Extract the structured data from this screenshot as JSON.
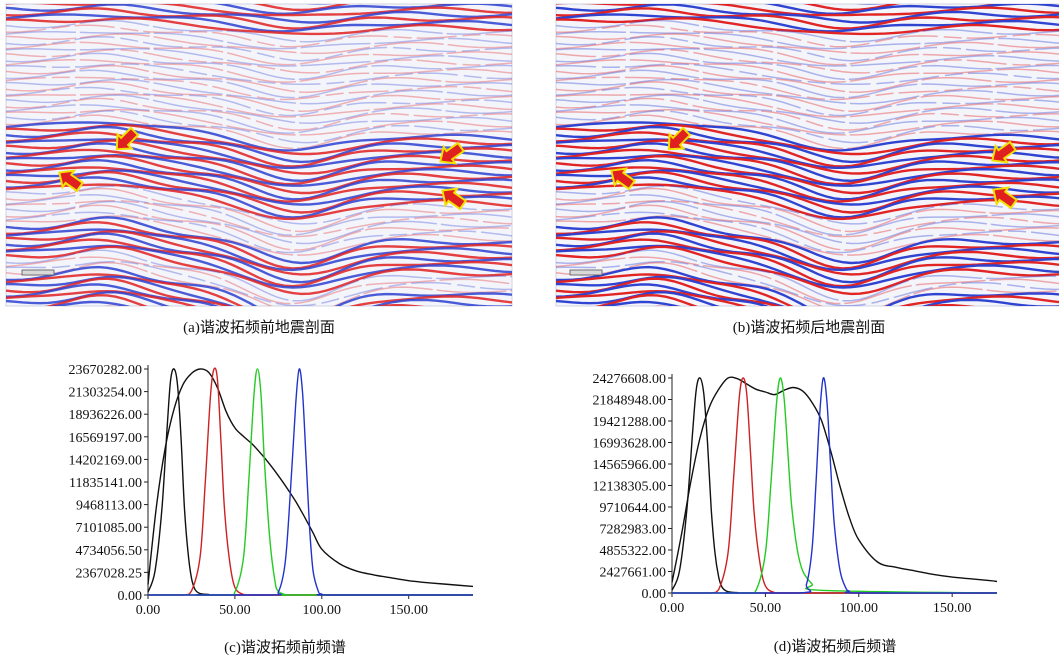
{
  "seismic_sections": {
    "before_caption": "(a)谐波拓频前地震剖面",
    "after_caption": "(b)谐波拓频后地震剖面",
    "colors": {
      "red": "#e02020",
      "blue": "#2a3fd0",
      "arrow_fill": "#e02020",
      "arrow_stroke": "#f2e000"
    }
  },
  "chart_data": [
    {
      "type": "line",
      "caption": "(c)谐波拓频前频谱",
      "xlim": [
        0,
        187
      ],
      "ylim": [
        0,
        23670282
      ],
      "xticks": [
        "0.00",
        "50.00",
        "100.00",
        "150.00"
      ],
      "xtick_values": [
        0,
        50,
        100,
        150
      ],
      "yticks": [
        "0.00",
        "2367028.25",
        "4734056.50",
        "7101085.00",
        "9468113.00",
        "11835141.00",
        "14202169.00",
        "16569197.00",
        "18936226.00",
        "21303254.00",
        "23670282.00"
      ],
      "ytick_values": [
        0,
        2367028.25,
        4734056.5,
        7101085,
        9468113,
        11835141,
        14202169,
        16569197,
        18936226,
        21303254,
        23670282
      ],
      "grid": false,
      "series": [
        {
          "color": "#111111",
          "x": [
            0,
            5,
            10,
            15,
            20,
            25,
            30,
            35,
            40,
            45,
            50,
            55,
            60,
            65,
            70,
            75,
            80,
            85,
            90,
            95,
            100,
            110,
            120,
            130,
            140,
            150,
            160,
            170,
            187
          ],
          "y": [
            1100000,
            9500000,
            15500000,
            19500000,
            22000000,
            23200000,
            23670282,
            23300000,
            21700000,
            19200000,
            17500000,
            16600000,
            15800000,
            14800000,
            13700000,
            12500000,
            11200000,
            9800000,
            8200000,
            6500000,
            4800000,
            3300000,
            2500000,
            2100000,
            1800000,
            1500000,
            1300000,
            1150000,
            900000
          ]
        },
        {
          "color": "#111111",
          "x": [
            0,
            4,
            8,
            11,
            13,
            15,
            17,
            19,
            21,
            23,
            25,
            27,
            30,
            35,
            40,
            187
          ],
          "y": [
            300000,
            2500000,
            9000000,
            17500000,
            22500000,
            23670282,
            22000000,
            16500000,
            9000000,
            4500000,
            1800000,
            600000,
            150000,
            50000,
            0,
            0
          ]
        },
        {
          "color": "#cc2222",
          "x": [
            0,
            20,
            25,
            30,
            33,
            36,
            38,
            40,
            42,
            44,
            47,
            50,
            55,
            60,
            187
          ],
          "y": [
            0,
            0,
            400000,
            4000000,
            12000000,
            21000000,
            23670282,
            22500000,
            16000000,
            9000000,
            3500000,
            800000,
            50000,
            0,
            0
          ]
        },
        {
          "color": "#22cc22",
          "x": [
            0,
            45,
            50,
            55,
            58,
            61,
            63,
            65,
            67,
            70,
            73,
            75,
            80,
            85,
            187
          ],
          "y": [
            0,
            0,
            300000,
            4000000,
            12000000,
            21000000,
            23670282,
            21000000,
            14000000,
            6000000,
            1500000,
            400000,
            0,
            0,
            0
          ]
        },
        {
          "color": "#2233cc",
          "x": [
            0,
            70,
            75,
            79,
            82,
            85,
            87,
            89,
            91,
            93,
            95,
            98,
            100,
            105,
            187
          ],
          "y": [
            0,
            0,
            300000,
            3500000,
            11000000,
            20000000,
            23670282,
            21000000,
            14000000,
            7000000,
            2500000,
            400000,
            100000,
            0,
            0
          ]
        }
      ]
    },
    {
      "type": "line",
      "caption": "(d)谐波拓频后频谱",
      "xlim": [
        0,
        174
      ],
      "ylim": [
        0,
        24276608
      ],
      "xticks": [
        "0.00",
        "50.00",
        "100.00",
        "150.00"
      ],
      "xtick_values": [
        0,
        50,
        100,
        150
      ],
      "yticks": [
        "0.00",
        "2427661.00",
        "4855322.00",
        "7282983.00",
        "9710644.00",
        "12138305.00",
        "14565966.00",
        "16993628.00",
        "19421288.00",
        "21848948.00",
        "24276608.00"
      ],
      "ytick_values": [
        0,
        2427661,
        4855322,
        7282983,
        9710644,
        12138305,
        14565966,
        16993628,
        19421288,
        21848948,
        24276608
      ],
      "grid": false,
      "series": [
        {
          "color": "#111111",
          "x": [
            0,
            5,
            10,
            15,
            20,
            25,
            30,
            35,
            40,
            45,
            50,
            55,
            60,
            65,
            70,
            75,
            80,
            85,
            90,
            95,
            100,
            110,
            120,
            130,
            140,
            150,
            160,
            170,
            174
          ],
          "y": [
            1200000,
            6500000,
            12500000,
            17500000,
            21000000,
            23000000,
            24276608,
            24200000,
            23600000,
            23000000,
            22700000,
            22400000,
            22900000,
            23200000,
            22800000,
            21500000,
            19500000,
            16000000,
            12000000,
            8500000,
            6000000,
            3500000,
            2900000,
            2500000,
            2100000,
            1800000,
            1600000,
            1400000,
            1300000
          ]
        },
        {
          "color": "#111111",
          "x": [
            0,
            4,
            8,
            11,
            13,
            15,
            17,
            19,
            21,
            23,
            25,
            27,
            30,
            35,
            40,
            174
          ],
          "y": [
            300000,
            2500000,
            9500000,
            18000000,
            23000000,
            24276608,
            22500000,
            17000000,
            9500000,
            4500000,
            1800000,
            600000,
            150000,
            50000,
            0,
            0
          ]
        },
        {
          "color": "#cc2222",
          "x": [
            0,
            20,
            25,
            30,
            33,
            36,
            38,
            40,
            42,
            44,
            47,
            50,
            55,
            60,
            174
          ],
          "y": [
            0,
            0,
            400000,
            4500000,
            13000000,
            22000000,
            24276608,
            22500000,
            16000000,
            9000000,
            3500000,
            800000,
            50000,
            0,
            0
          ]
        },
        {
          "color": "#22cc22",
          "x": [
            0,
            40,
            45,
            50,
            53,
            56,
            58,
            60,
            62,
            64,
            67,
            70,
            75,
            80,
            174
          ],
          "y": [
            0,
            0,
            300000,
            4500000,
            12500000,
            21500000,
            24276608,
            22000000,
            16000000,
            10000000,
            5000000,
            2500000,
            1000000,
            300000,
            0
          ]
        },
        {
          "color": "#2233cc",
          "x": [
            0,
            68,
            72,
            75,
            77,
            79,
            81,
            83,
            85,
            87,
            90,
            93,
            95,
            100,
            174
          ],
          "y": [
            0,
            0,
            1000000,
            5000000,
            12000000,
            20000000,
            24276608,
            21500000,
            14000000,
            7500000,
            2500000,
            600000,
            200000,
            0,
            0
          ]
        }
      ]
    }
  ]
}
